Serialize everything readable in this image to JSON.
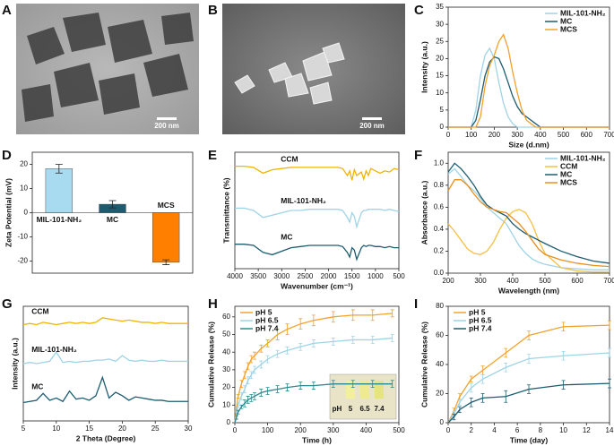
{
  "panels": [
    "A",
    "B",
    "C",
    "D",
    "E",
    "F",
    "G",
    "H",
    "I"
  ],
  "images": [
    {
      "scale_bar": "200 nm"
    },
    {
      "scale_bar": "200 nm"
    }
  ],
  "chart_data": [
    {
      "type": "line",
      "ylabel": "Intensity (a.u.)",
      "xlabel": "Size (d.nm)",
      "xlim": [
        0,
        700
      ],
      "xticks": [
        0,
        100,
        200,
        300,
        400,
        500,
        600,
        700
      ],
      "ylim": [
        0,
        35
      ],
      "yticks": [
        0,
        5,
        10,
        15,
        20,
        25,
        30,
        35
      ],
      "legend": "upper right",
      "x": [
        0,
        50,
        100,
        120,
        140,
        160,
        180,
        200,
        220,
        240,
        260,
        280,
        300,
        320,
        340,
        360,
        380,
        400,
        450,
        500,
        600,
        700
      ],
      "series": [
        {
          "name": "MIL-101-NH₂",
          "color": "#9fd3e6",
          "values": [
            0,
            0,
            0,
            5,
            15,
            21,
            23,
            20,
            13,
            7,
            3,
            1,
            0,
            0,
            0,
            0,
            0,
            0,
            0,
            0,
            0,
            0
          ]
        },
        {
          "name": "MC",
          "color": "#1d5c70",
          "values": [
            0,
            0,
            0,
            2,
            8,
            15,
            19,
            20.5,
            20,
            17,
            13,
            9,
            6,
            4,
            3,
            2,
            1,
            0,
            0,
            0,
            0,
            0
          ]
        },
        {
          "name": "MCS",
          "color": "#f2a22c",
          "values": [
            0,
            0,
            0,
            0,
            3,
            12,
            18,
            21,
            25,
            27,
            23,
            16,
            10,
            5,
            2,
            1,
            0,
            0,
            0,
            0,
            0,
            0
          ]
        }
      ]
    },
    {
      "type": "bar",
      "ylabel": "Zeta Potential (mV)",
      "categories": [
        "MIL-101-NH₂",
        "MC",
        "MCS"
      ],
      "values": [
        18.2,
        3.5,
        -20.5
      ],
      "errors": [
        1.8,
        1.5,
        1.0
      ],
      "colors": [
        "#a8daf0",
        "#1d5c70",
        "#ff8000"
      ],
      "ylim": [
        -25,
        25
      ],
      "yticks": [
        -20,
        -10,
        0,
        10,
        20
      ]
    },
    {
      "type": "line",
      "ylabel": "Transmittance (%)",
      "xlabel": "Wavenumber (cm⁻¹)",
      "xlim": [
        4000,
        500
      ],
      "xticks": [
        4000,
        3500,
        3000,
        2500,
        2000,
        1500,
        1000,
        500
      ],
      "ylim": [
        0,
        100
      ],
      "legend": "inline",
      "x": [
        4000,
        3800,
        3600,
        3400,
        3200,
        3000,
        2800,
        2600,
        2400,
        2200,
        2000,
        1800,
        1700,
        1600,
        1550,
        1500,
        1450,
        1400,
        1300,
        1250,
        1200,
        1150,
        1100,
        1000,
        900,
        800,
        700,
        600,
        500
      ],
      "series": [
        {
          "name": "CCM",
          "color": "#f0b400",
          "values": [
            88,
            88,
            87,
            82,
            85,
            86,
            87,
            87,
            87,
            87,
            87,
            87,
            86,
            80,
            84,
            76,
            85,
            80,
            83,
            77,
            84,
            80,
            86,
            84,
            82,
            84,
            83,
            86,
            85
          ]
        },
        {
          "name": "MIL-101-NH₂",
          "color": "#9fd3e6",
          "values": [
            52,
            52,
            50,
            44,
            46,
            48,
            50,
            50,
            51,
            51,
            51,
            51,
            50,
            44,
            40,
            48,
            45,
            36,
            48,
            50,
            50,
            51,
            51,
            51,
            51,
            50,
            51,
            50,
            49
          ]
        },
        {
          "name": "MC",
          "color": "#1d5c70",
          "values": [
            21,
            21,
            20,
            14,
            12,
            15,
            18,
            19,
            20,
            20,
            20,
            20,
            19,
            14,
            10,
            18,
            16,
            8,
            18,
            20,
            19,
            20,
            20,
            19,
            19,
            18,
            19,
            18,
            18
          ]
        }
      ]
    },
    {
      "type": "line",
      "ylabel": "Absorbance (a.u.)",
      "xlabel": "Wavelength (nm)",
      "xlim": [
        200,
        700
      ],
      "xticks": [
        200,
        300,
        400,
        500,
        600,
        700
      ],
      "ylim": [
        0,
        1.1
      ],
      "yticks": [
        {
          "value": 0,
          "label": "0.0"
        },
        0.2,
        0.4,
        0.6,
        0.8,
        {
          "value": 1,
          "label": "1.0"
        }
      ],
      "legend": "upper right",
      "x": [
        200,
        220,
        240,
        260,
        280,
        300,
        320,
        340,
        360,
        380,
        400,
        420,
        440,
        460,
        480,
        500,
        550,
        600,
        650,
        700
      ],
      "series": [
        {
          "name": "MIL-101-NH₂",
          "color": "#9fd3e6",
          "values": [
            0.9,
            0.95,
            0.88,
            0.8,
            0.75,
            0.68,
            0.6,
            0.55,
            0.5,
            0.45,
            0.35,
            0.25,
            0.18,
            0.13,
            0.1,
            0.08,
            0.05,
            0.04,
            0.03,
            0.03
          ]
        },
        {
          "name": "CCM",
          "color": "#f5c040",
          "values": [
            0.45,
            0.38,
            0.3,
            0.22,
            0.18,
            0.17,
            0.2,
            0.28,
            0.4,
            0.5,
            0.56,
            0.58,
            0.55,
            0.45,
            0.3,
            0.18,
            0.05,
            0.02,
            0.01,
            0.01
          ]
        },
        {
          "name": "MC",
          "color": "#1d5c70",
          "values": [
            0.92,
            1.0,
            0.95,
            0.88,
            0.8,
            0.7,
            0.62,
            0.58,
            0.55,
            0.52,
            0.45,
            0.4,
            0.36,
            0.33,
            0.3,
            0.27,
            0.2,
            0.15,
            0.11,
            0.09
          ]
        },
        {
          "name": "MCS",
          "color": "#e8901c",
          "values": [
            0.75,
            0.85,
            0.85,
            0.8,
            0.72,
            0.65,
            0.6,
            0.58,
            0.56,
            0.55,
            0.5,
            0.45,
            0.38,
            0.3,
            0.22,
            0.17,
            0.12,
            0.09,
            0.07,
            0.06
          ]
        }
      ]
    },
    {
      "type": "line",
      "ylabel": "Intensity (a.u.)",
      "xlabel": "2 Theta (Degree)",
      "xlim": [
        5,
        30
      ],
      "xticks": [
        5,
        10,
        15,
        20,
        25,
        30
      ],
      "ylim": [
        0,
        100
      ],
      "legend": "inline",
      "x": [
        5,
        6,
        7,
        8,
        9,
        10,
        11,
        12,
        13,
        14,
        15,
        16,
        17,
        18,
        19,
        20,
        21,
        22,
        23,
        24,
        25,
        26,
        27,
        28,
        29,
        30
      ],
      "series": [
        {
          "name": "CCM",
          "color": "#f0b400",
          "values": [
            84,
            85,
            84,
            86,
            85,
            84,
            85,
            86,
            85,
            86,
            85,
            86,
            90,
            89,
            88,
            87,
            88,
            87,
            86,
            86,
            85,
            86,
            85,
            85,
            85,
            85
          ]
        },
        {
          "name": "MIL-101-NH₂",
          "color": "#9fd3e6",
          "values": [
            50,
            51,
            50,
            51,
            52,
            60,
            51,
            52,
            51,
            52,
            52,
            53,
            53,
            54,
            52,
            57,
            53,
            52,
            53,
            52,
            52,
            53,
            52,
            52,
            52,
            52
          ]
        },
        {
          "name": "MC",
          "color": "#1d5c70",
          "values": [
            16,
            17,
            18,
            24,
            18,
            20,
            17,
            26,
            19,
            20,
            18,
            22,
            38,
            20,
            25,
            22,
            18,
            21,
            20,
            19,
            18,
            18,
            17,
            17,
            17,
            17
          ]
        }
      ]
    },
    {
      "type": "line",
      "ylabel": "Cumulative Release (%)",
      "xlabel": "Time (h)",
      "xlim": [
        0,
        500
      ],
      "xticks": [
        0,
        100,
        200,
        300,
        400,
        500
      ],
      "ylim": [
        0,
        66
      ],
      "yticks": [
        0,
        10,
        20,
        30,
        40,
        50,
        60
      ],
      "legend": "upper left",
      "inset_labels": [
        "pH",
        "5",
        "6.5",
        "7.4"
      ],
      "x": [
        0,
        5,
        10,
        20,
        30,
        40,
        50,
        60,
        80,
        100,
        130,
        160,
        200,
        240,
        300,
        360,
        420,
        480
      ],
      "series": [
        {
          "name": "pH 5",
          "color": "#f2a22c",
          "values": [
            0,
            8,
            15,
            22,
            27,
            32,
            36,
            38,
            42,
            45,
            50,
            53,
            56,
            58,
            60,
            61,
            61,
            62
          ],
          "errors": [
            0,
            1,
            1,
            2,
            2,
            2,
            2,
            2,
            2,
            2,
            3,
            3,
            3,
            3,
            3,
            3,
            3,
            2
          ]
        },
        {
          "name": "pH 6.5",
          "color": "#9fd3e6",
          "values": [
            0,
            5,
            10,
            15,
            19,
            24,
            27,
            30,
            33,
            36,
            39,
            41,
            43,
            45,
            46,
            47,
            47,
            48
          ],
          "errors": [
            0,
            1,
            1,
            2,
            2,
            2,
            2,
            2,
            2,
            2,
            2,
            2,
            2,
            2,
            2,
            2,
            2,
            2
          ]
        },
        {
          "name": "pH 7.4",
          "color": "#2a8a8e",
          "values": [
            0,
            3,
            6,
            9,
            11,
            13,
            14,
            15,
            17,
            18,
            19,
            20,
            21,
            21,
            22,
            22,
            22,
            22
          ],
          "errors": [
            0,
            1,
            1,
            1,
            2,
            2,
            2,
            2,
            2,
            2,
            2,
            2,
            2,
            2,
            2,
            2,
            2,
            2
          ]
        }
      ]
    },
    {
      "type": "line",
      "ylabel": "Cumulative Release (%)",
      "xlabel": "Time (day)",
      "xlim": [
        0,
        14
      ],
      "xticks": [
        0,
        2,
        4,
        6,
        8,
        10,
        12,
        14
      ],
      "ylim": [
        0,
        80
      ],
      "yticks": [
        0,
        20,
        40,
        60,
        80
      ],
      "legend": "upper left",
      "x": [
        0,
        0.5,
        1,
        2,
        3,
        5,
        7,
        10,
        14
      ],
      "series": [
        {
          "name": "pH 5",
          "color": "#f2a22c",
          "values": [
            0,
            8,
            18,
            30,
            36,
            48,
            60,
            66,
            67
          ],
          "errors": [
            0,
            2,
            2,
            2,
            3,
            3,
            3,
            3,
            3
          ]
        },
        {
          "name": "pH 6.5",
          "color": "#9fd3e6",
          "values": [
            0,
            6,
            14,
            24,
            30,
            38,
            44,
            46,
            48
          ],
          "errors": [
            0,
            2,
            2,
            3,
            3,
            3,
            3,
            3,
            3
          ]
        },
        {
          "name": "pH 7.4",
          "color": "#1d5c70",
          "values": [
            0,
            4,
            9,
            14,
            17,
            18,
            23,
            26,
            27
          ],
          "errors": [
            0,
            2,
            2,
            3,
            3,
            4,
            3,
            3,
            3
          ]
        }
      ]
    }
  ]
}
